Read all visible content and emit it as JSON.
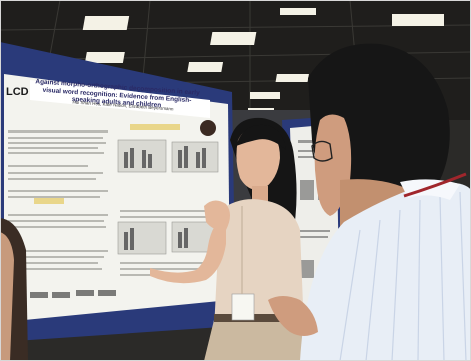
{
  "scene": {
    "poster_logo": "LCD",
    "poster_title": "Against morpho-orthographic decomposition in early visual word recognition: Evidence from English-speaking adults and children",
    "poster_authors": "Hui Shan Hsu, Kate Nation, Elizabeth Beyersmann"
  },
  "colors": {
    "ceiling": "#1f1e1c",
    "poster_border": "#2a3a7a",
    "poster_paper": "#f3f3ee",
    "shirt": "#e8eef6",
    "hair": "#151515"
  }
}
